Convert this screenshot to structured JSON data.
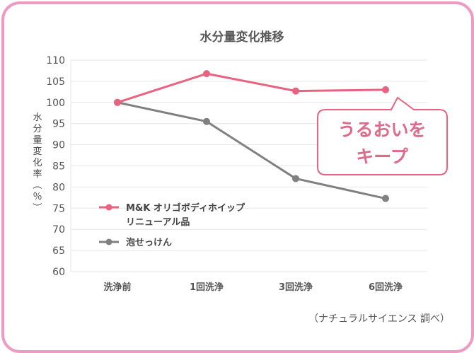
{
  "chart_data": {
    "type": "line",
    "title": "水分量変化推移",
    "ylabel": "水分量変化率（％）",
    "xlabel": "",
    "categories": [
      "洗浄前",
      "1回洗浄",
      "3回洗浄",
      "6回洗浄"
    ],
    "ylim": [
      60,
      110
    ],
    "yticks": [
      60,
      65,
      70,
      75,
      80,
      85,
      90,
      95,
      100,
      105,
      110
    ],
    "grid": true,
    "legend_position": "bottom-left",
    "series": [
      {
        "name": "M&K オリゴボディホイップ リニューアル品",
        "legend_lines": [
          "M&K オリゴボディホイップ",
          "リニューアル品"
        ],
        "color": "#e8637f",
        "values": [
          100,
          106.8,
          102.7,
          103.0
        ]
      },
      {
        "name": "泡せっけん",
        "legend_lines": [
          "泡せっけん"
        ],
        "color": "#808080",
        "values": [
          100,
          95.5,
          82.0,
          77.3
        ]
      }
    ],
    "callout": {
      "lines": [
        "うるおいを",
        "キープ"
      ],
      "border_color": "#e8637f",
      "text_color": "#e06a8a"
    },
    "source": "（ナチュラルサイエンス 調べ）"
  },
  "frame_color": "#ef9ac3"
}
